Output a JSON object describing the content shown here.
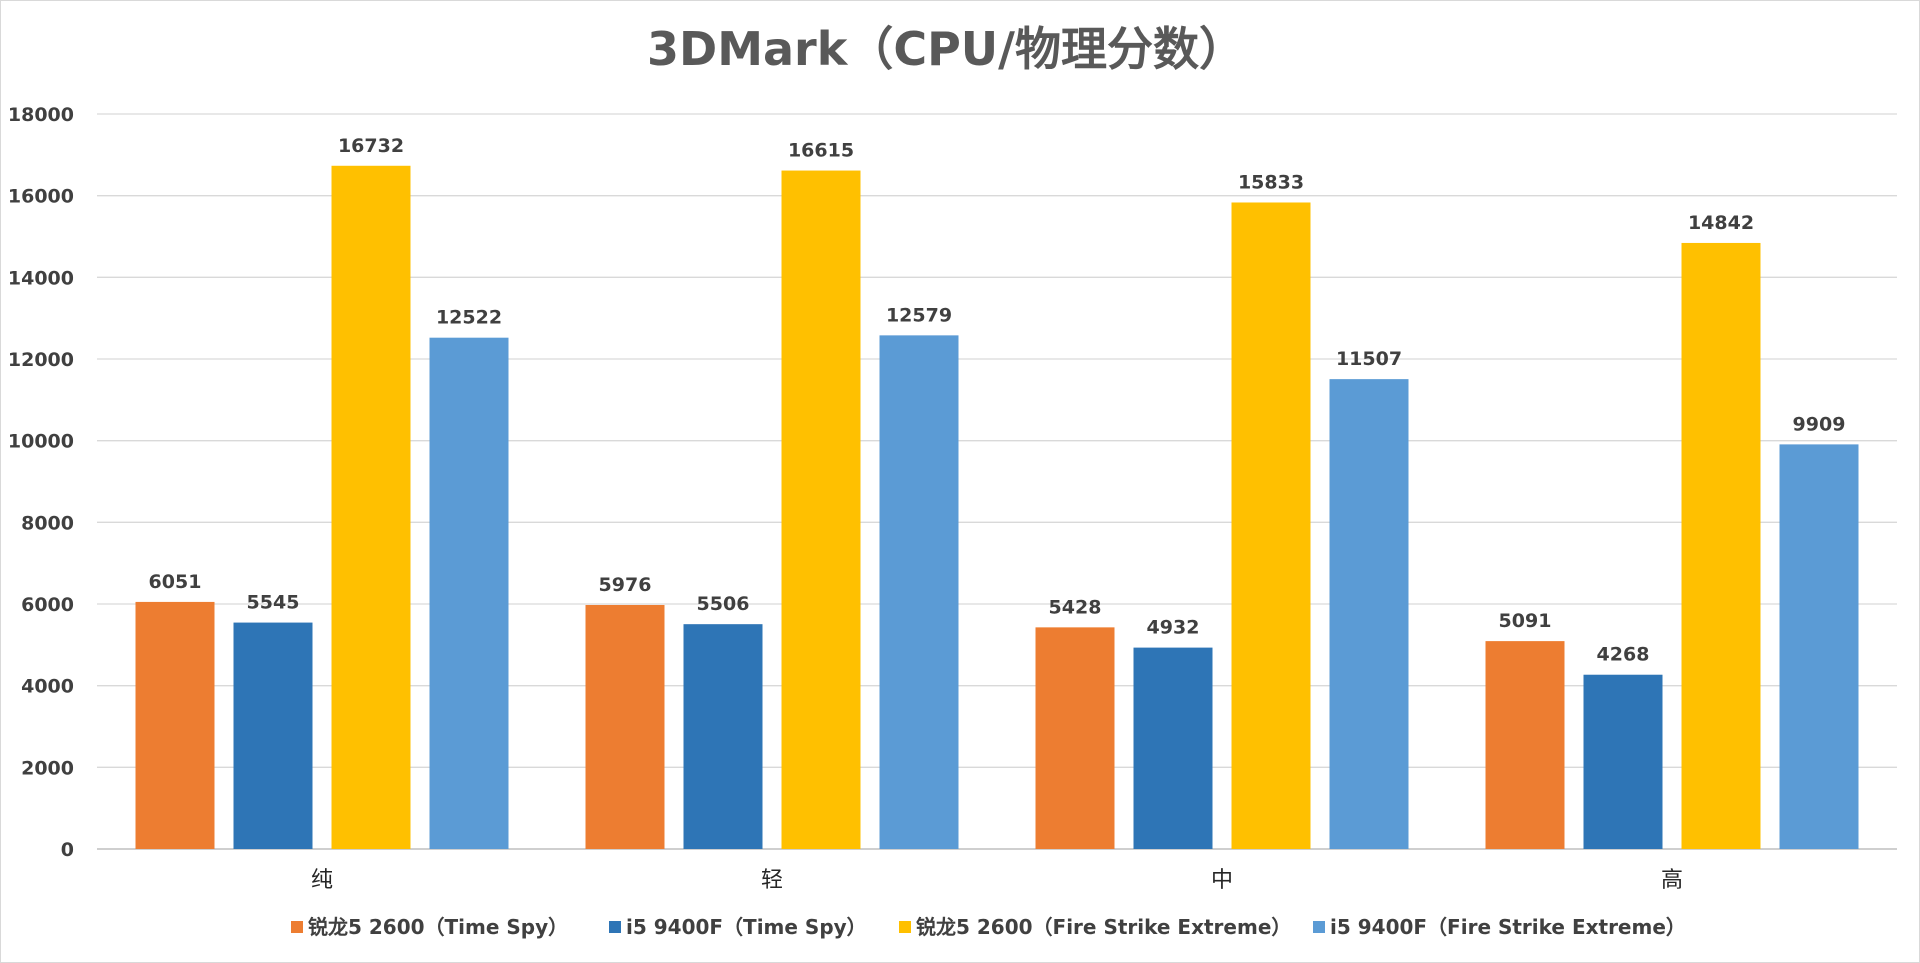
{
  "chart_data": {
    "type": "bar",
    "title": "3DMark（CPU/物理分数）",
    "categories": [
      "纯",
      "轻",
      "中",
      "高"
    ],
    "ylim": [
      0,
      18000
    ],
    "yticks": [
      0,
      2000,
      4000,
      6000,
      8000,
      10000,
      12000,
      14000,
      16000,
      18000
    ],
    "ytick_labels": [
      "0",
      "2000",
      "4000",
      "6000",
      "8000",
      "10000",
      "12000",
      "14000",
      "16000",
      "18000"
    ],
    "grid": true,
    "legend_position": "bottom",
    "series": [
      {
        "name": "锐龙5 2600（Time Spy）",
        "color": "#ED7D31",
        "values": [
          6051,
          5976,
          5428,
          5091
        ]
      },
      {
        "name": "i5 9400F（Time Spy）",
        "color": "#2E75B6",
        "values": [
          5545,
          5506,
          4932,
          4268
        ]
      },
      {
        "name": "锐龙5 2600（Fire Strike Extreme）",
        "color": "#FFC000",
        "values": [
          16732,
          16615,
          15833,
          14842
        ]
      },
      {
        "name": "i5 9400F（Fire Strike Extreme）",
        "color": "#5B9BD5",
        "values": [
          12522,
          12579,
          11507,
          9909
        ]
      }
    ]
  }
}
